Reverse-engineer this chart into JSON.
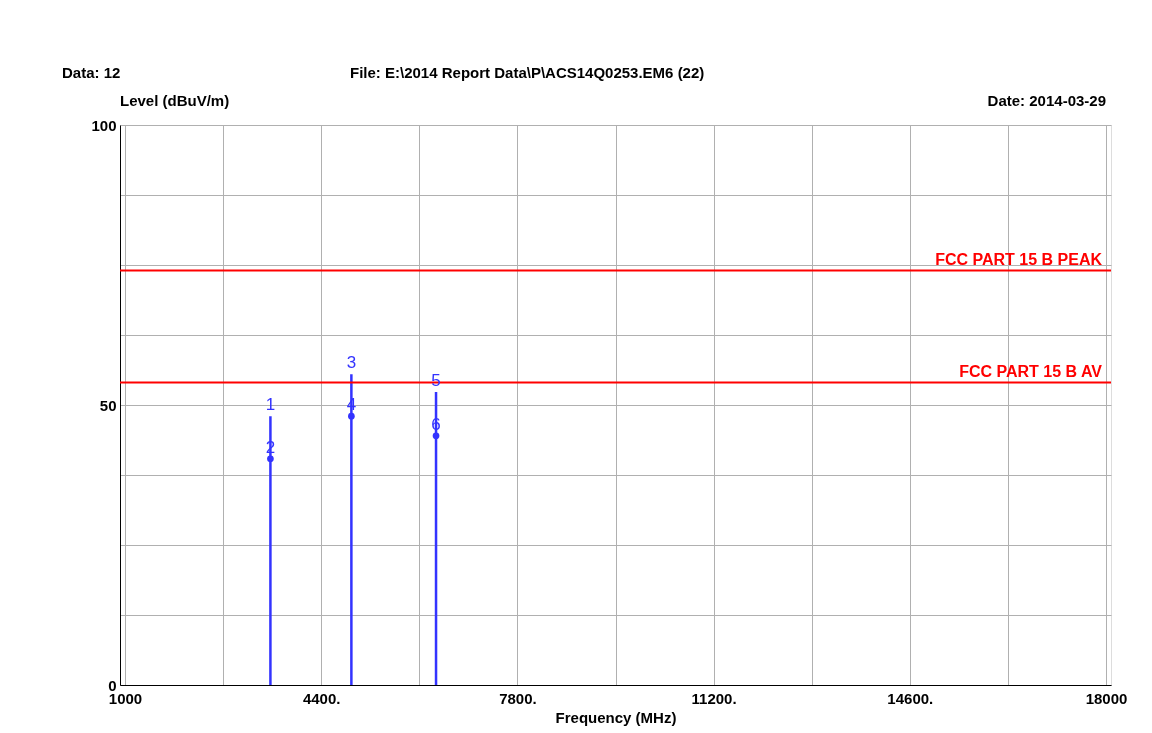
{
  "chart_data": {
    "type": "bar",
    "xlabel": "Frequency (MHz)",
    "ylabel": "Level (dBuV/m)",
    "x": [
      3520,
      4923,
      6390
    ],
    "series": [
      {
        "color": "#3333ff",
        "values": [
          48.0,
          55.5,
          52.3
        ]
      },
      {
        "type": "scatter",
        "color": "#3333ff",
        "marker": "circle",
        "values": [
          40.4,
          48.0,
          44.5
        ]
      }
    ],
    "xlim": [
      1000,
      18000
    ],
    "xticks": [
      1000,
      {
        "value": 2700,
        "label": null
      },
      {
        "value": 4400,
        "label": "4400."
      },
      {
        "value": 6100,
        "label": null
      },
      {
        "value": 7800,
        "label": "7800."
      },
      {
        "value": 9500,
        "label": null
      },
      {
        "value": 11200,
        "label": "11200."
      },
      {
        "value": 12900,
        "label": null
      },
      {
        "value": 14600,
        "label": "14600."
      },
      {
        "value": 16300,
        "label": null
      },
      18000
    ],
    "ylim": [
      0,
      100
    ],
    "yticks": [
      0,
      {
        "value": 12.5,
        "label": null
      },
      {
        "value": 25,
        "label": null
      },
      {
        "value": 37.5,
        "label": null
      },
      50,
      {
        "value": 62.5,
        "label": null
      },
      {
        "value": 75,
        "label": null
      },
      {
        "value": 87.5,
        "label": null
      },
      100
    ],
    "grid": true,
    "ref_lines": [
      {
        "axis": "y",
        "value": 74,
        "label": "FCC PART 15 B PEAK",
        "color": "#ff0000"
      },
      {
        "axis": "y",
        "value": 54,
        "label": "FCC PART 15 B AV",
        "color": "#ff0000"
      }
    ],
    "annotations": [
      "Data: 12",
      "File: E:\\2014 Report Data\\P\\ACS14Q0253.EM6  (22)",
      "Date: 2014-03-29",
      {
        "text": "1",
        "x": 3520,
        "y": 48.0
      },
      {
        "text": "2",
        "x": 3520,
        "y": 40.4
      },
      {
        "text": "3",
        "x": 4923,
        "y": 55.5
      },
      {
        "text": "4",
        "x": 4923,
        "y": 48.0
      },
      {
        "text": "5",
        "x": 6390,
        "y": 52.3
      },
      {
        "text": "6",
        "x": 6390,
        "y": 44.5
      }
    ]
  }
}
